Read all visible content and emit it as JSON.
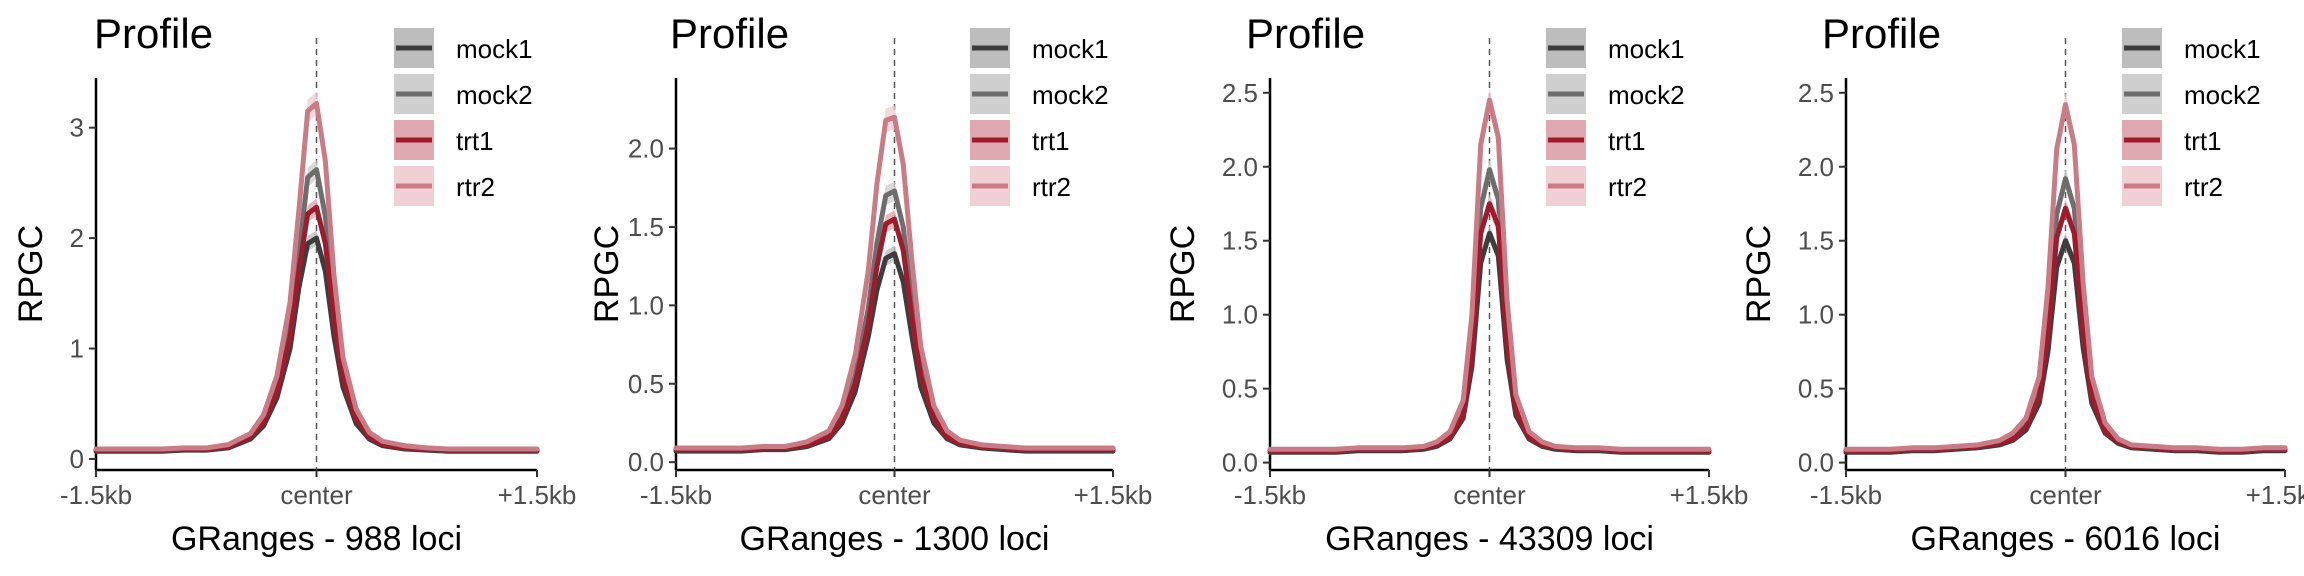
{
  "colors": {
    "mock1": "#3d3d3d",
    "mock2": "#6e6e6e",
    "trt1": "#9e1b2c",
    "rtr2": "#c97c85",
    "mock1_band": "#bdbdbd",
    "mock2_band": "#cfcfcf",
    "trt1_band": "#e0a8b0",
    "rtr2_band": "#f0d0d4",
    "center_line": "#555555"
  },
  "chart_data": [
    {
      "type": "line",
      "title": "Profile",
      "xlabel": "GRanges - 988 loci",
      "ylabel": "RPGC",
      "x_tick_labels": [
        "-1.5kb",
        "center",
        "+1.5kb"
      ],
      "yticks": [
        "0",
        "1",
        "2",
        "3"
      ],
      "ylim": [
        -0.1,
        3.45
      ],
      "x": [
        -1500,
        -1350,
        -1200,
        -1050,
        -900,
        -750,
        -600,
        -450,
        -360,
        -270,
        -180,
        -120,
        -60,
        0,
        60,
        120,
        180,
        270,
        360,
        450,
        600,
        750,
        900,
        1050,
        1200,
        1350,
        1500
      ],
      "series": [
        {
          "name": "mock1",
          "values": [
            0.07,
            0.07,
            0.07,
            0.07,
            0.08,
            0.08,
            0.1,
            0.18,
            0.3,
            0.55,
            1.0,
            1.55,
            1.95,
            2.0,
            1.7,
            1.1,
            0.65,
            0.32,
            0.18,
            0.12,
            0.09,
            0.08,
            0.07,
            0.07,
            0.07,
            0.07,
            0.07
          ]
        },
        {
          "name": "mock2",
          "values": [
            0.08,
            0.08,
            0.08,
            0.08,
            0.09,
            0.09,
            0.11,
            0.2,
            0.34,
            0.63,
            1.18,
            1.85,
            2.55,
            2.62,
            2.2,
            1.35,
            0.78,
            0.38,
            0.21,
            0.14,
            0.1,
            0.09,
            0.08,
            0.08,
            0.08,
            0.08,
            0.08
          ]
        },
        {
          "name": "trt1",
          "values": [
            0.08,
            0.08,
            0.08,
            0.08,
            0.09,
            0.09,
            0.11,
            0.2,
            0.33,
            0.6,
            1.1,
            1.7,
            2.22,
            2.28,
            1.95,
            1.25,
            0.72,
            0.36,
            0.2,
            0.13,
            0.1,
            0.09,
            0.08,
            0.08,
            0.08,
            0.08,
            0.08
          ]
        },
        {
          "name": "rtr2",
          "values": [
            0.09,
            0.09,
            0.09,
            0.09,
            0.1,
            0.1,
            0.13,
            0.23,
            0.4,
            0.75,
            1.42,
            2.25,
            3.15,
            3.22,
            2.7,
            1.65,
            0.92,
            0.45,
            0.24,
            0.16,
            0.12,
            0.1,
            0.09,
            0.09,
            0.09,
            0.09,
            0.09
          ]
        }
      ],
      "legend": "top-right",
      "grid": false
    },
    {
      "type": "line",
      "title": "Profile",
      "xlabel": "GRanges - 1300 loci",
      "ylabel": "RPGC",
      "x_tick_labels": [
        "-1.5kb",
        "center",
        "+1.5kb"
      ],
      "yticks": [
        "0.0",
        "0.5",
        "1.0",
        "1.5",
        "2.0"
      ],
      "ylim": [
        -0.05,
        2.45
      ],
      "x": [
        -1500,
        -1350,
        -1200,
        -1050,
        -900,
        -750,
        -600,
        -450,
        -360,
        -270,
        -180,
        -120,
        -60,
        0,
        60,
        120,
        180,
        270,
        360,
        450,
        600,
        750,
        900,
        1050,
        1200,
        1350,
        1500
      ],
      "series": [
        {
          "name": "mock1",
          "values": [
            0.07,
            0.07,
            0.07,
            0.07,
            0.08,
            0.08,
            0.1,
            0.15,
            0.25,
            0.45,
            0.8,
            1.1,
            1.3,
            1.33,
            1.15,
            0.8,
            0.48,
            0.25,
            0.15,
            0.11,
            0.09,
            0.08,
            0.07,
            0.07,
            0.07,
            0.07,
            0.07
          ]
        },
        {
          "name": "mock2",
          "values": [
            0.08,
            0.08,
            0.08,
            0.08,
            0.09,
            0.09,
            0.11,
            0.17,
            0.3,
            0.55,
            0.98,
            1.4,
            1.7,
            1.73,
            1.5,
            1.02,
            0.6,
            0.3,
            0.17,
            0.12,
            0.1,
            0.09,
            0.08,
            0.08,
            0.08,
            0.08,
            0.08
          ]
        },
        {
          "name": "trt1",
          "values": [
            0.08,
            0.08,
            0.08,
            0.08,
            0.09,
            0.09,
            0.11,
            0.16,
            0.28,
            0.5,
            0.88,
            1.25,
            1.52,
            1.55,
            1.35,
            0.92,
            0.55,
            0.28,
            0.16,
            0.12,
            0.1,
            0.09,
            0.08,
            0.08,
            0.08,
            0.08,
            0.08
          ]
        },
        {
          "name": "rtr2",
          "values": [
            0.09,
            0.09,
            0.09,
            0.09,
            0.1,
            0.1,
            0.13,
            0.2,
            0.36,
            0.68,
            1.22,
            1.78,
            2.18,
            2.2,
            1.9,
            1.28,
            0.74,
            0.36,
            0.2,
            0.14,
            0.11,
            0.1,
            0.09,
            0.09,
            0.09,
            0.09,
            0.09
          ]
        }
      ],
      "legend": "top-right",
      "grid": false
    },
    {
      "type": "line",
      "title": "Profile",
      "xlabel": "GRanges - 43309 loci",
      "ylabel": "RPGC",
      "x_tick_labels": [
        "-1.5kb",
        "center",
        "+1.5kb"
      ],
      "yticks": [
        "0.0",
        "0.5",
        "1.0",
        "1.5",
        "2.0",
        "2.5"
      ],
      "ylim": [
        -0.05,
        2.6
      ],
      "x": [
        -1500,
        -1350,
        -1200,
        -1050,
        -900,
        -750,
        -600,
        -450,
        -360,
        -270,
        -180,
        -120,
        -60,
        0,
        60,
        120,
        180,
        270,
        360,
        450,
        600,
        750,
        900,
        1050,
        1200,
        1350,
        1500
      ],
      "series": [
        {
          "name": "mock1",
          "values": [
            0.07,
            0.07,
            0.07,
            0.07,
            0.08,
            0.08,
            0.08,
            0.09,
            0.11,
            0.16,
            0.3,
            0.65,
            1.35,
            1.55,
            1.4,
            0.7,
            0.32,
            0.16,
            0.11,
            0.09,
            0.08,
            0.08,
            0.07,
            0.07,
            0.07,
            0.07,
            0.07
          ]
        },
        {
          "name": "mock2",
          "values": [
            0.08,
            0.08,
            0.08,
            0.08,
            0.09,
            0.09,
            0.09,
            0.1,
            0.12,
            0.18,
            0.35,
            0.8,
            1.72,
            1.98,
            1.78,
            0.88,
            0.38,
            0.18,
            0.12,
            0.1,
            0.09,
            0.09,
            0.08,
            0.08,
            0.08,
            0.08,
            0.08
          ]
        },
        {
          "name": "trt1",
          "values": [
            0.08,
            0.08,
            0.08,
            0.08,
            0.09,
            0.09,
            0.09,
            0.1,
            0.12,
            0.17,
            0.32,
            0.72,
            1.55,
            1.75,
            1.6,
            0.8,
            0.35,
            0.17,
            0.12,
            0.1,
            0.09,
            0.09,
            0.08,
            0.08,
            0.08,
            0.08,
            0.08
          ]
        },
        {
          "name": "rtr2",
          "values": [
            0.09,
            0.09,
            0.09,
            0.09,
            0.1,
            0.1,
            0.1,
            0.11,
            0.14,
            0.21,
            0.42,
            1.0,
            2.15,
            2.45,
            2.2,
            1.1,
            0.46,
            0.21,
            0.14,
            0.11,
            0.1,
            0.1,
            0.09,
            0.09,
            0.09,
            0.09,
            0.09
          ]
        }
      ],
      "legend": "top-right",
      "grid": false
    },
    {
      "type": "line",
      "title": "Profile",
      "xlabel": "GRanges - 6016 loci",
      "ylabel": "RPGC",
      "x_tick_labels": [
        "-1.5kb",
        "center",
        "+1.5kb"
      ],
      "yticks": [
        "0.0",
        "0.5",
        "1.0",
        "1.5",
        "2.0",
        "2.5"
      ],
      "ylim": [
        -0.05,
        2.6
      ],
      "x": [
        -1500,
        -1350,
        -1200,
        -1050,
        -900,
        -750,
        -600,
        -450,
        -360,
        -270,
        -180,
        -120,
        -60,
        0,
        60,
        120,
        180,
        270,
        360,
        450,
        600,
        750,
        900,
        1050,
        1200,
        1350,
        1500
      ],
      "series": [
        {
          "name": "mock1",
          "values": [
            0.07,
            0.07,
            0.07,
            0.08,
            0.08,
            0.09,
            0.1,
            0.12,
            0.15,
            0.22,
            0.4,
            0.75,
            1.32,
            1.5,
            1.35,
            0.78,
            0.4,
            0.2,
            0.13,
            0.1,
            0.09,
            0.08,
            0.08,
            0.07,
            0.07,
            0.08,
            0.08
          ]
        },
        {
          "name": "mock2",
          "values": [
            0.08,
            0.08,
            0.08,
            0.09,
            0.09,
            0.1,
            0.11,
            0.13,
            0.17,
            0.26,
            0.48,
            0.95,
            1.68,
            1.92,
            1.72,
            0.98,
            0.48,
            0.23,
            0.14,
            0.11,
            0.1,
            0.09,
            0.09,
            0.08,
            0.08,
            0.09,
            0.09
          ]
        },
        {
          "name": "trt1",
          "values": [
            0.08,
            0.08,
            0.08,
            0.09,
            0.09,
            0.1,
            0.11,
            0.13,
            0.16,
            0.24,
            0.44,
            0.86,
            1.52,
            1.72,
            1.55,
            0.88,
            0.44,
            0.21,
            0.14,
            0.11,
            0.1,
            0.09,
            0.09,
            0.08,
            0.08,
            0.09,
            0.09
          ]
        },
        {
          "name": "rtr2",
          "values": [
            0.09,
            0.09,
            0.09,
            0.1,
            0.1,
            0.11,
            0.12,
            0.15,
            0.2,
            0.3,
            0.58,
            1.18,
            2.12,
            2.42,
            2.15,
            1.22,
            0.58,
            0.27,
            0.16,
            0.12,
            0.11,
            0.1,
            0.1,
            0.09,
            0.09,
            0.1,
            0.1
          ]
        }
      ],
      "legend": "top-right",
      "grid": false
    }
  ]
}
